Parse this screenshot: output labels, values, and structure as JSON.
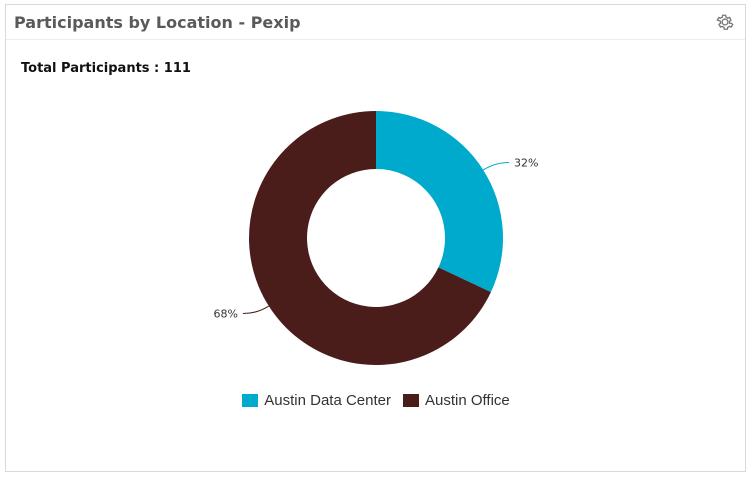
{
  "widget": {
    "title": "Participants by Location - Pexip",
    "settings_icon": "gear-icon",
    "total_label": "Total Participants : 111"
  },
  "chart_data": {
    "type": "pie",
    "donut": true,
    "title": "Participants by Location - Pexip",
    "categories": [
      "Austin Data Center",
      "Austin Office"
    ],
    "values": [
      32,
      68
    ],
    "labels": [
      "32%",
      "68%"
    ],
    "colors": [
      "#00aacc",
      "#4a1c1a"
    ],
    "legend_position": "bottom"
  }
}
